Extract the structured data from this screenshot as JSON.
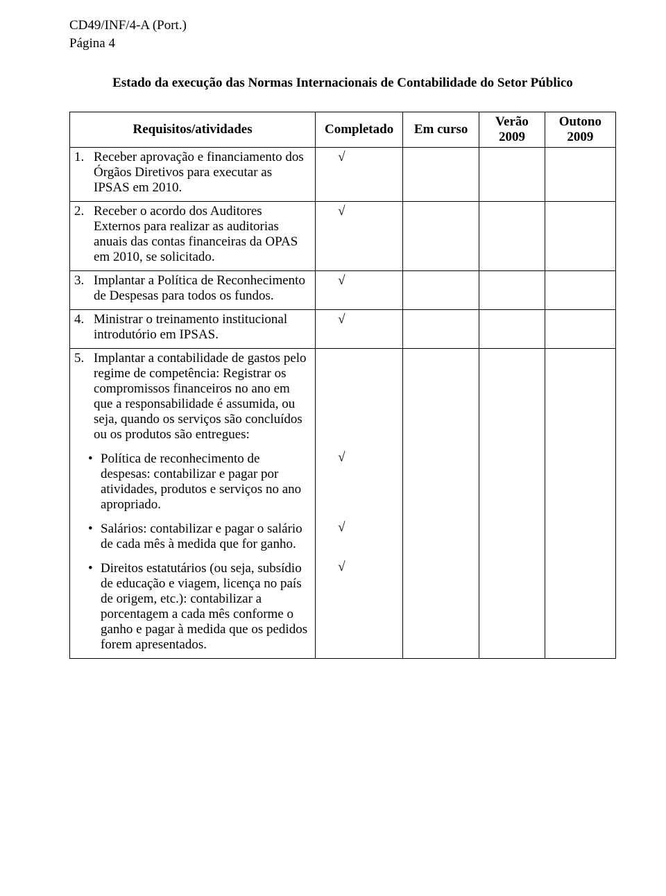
{
  "header": {
    "doc_ref": "CD49/INF/4-A  (Port.)",
    "page_label": "Página 4"
  },
  "title": "Estado da execução das Normas Internacionais de Contabilidade do Setor Público",
  "columns": {
    "req": "Requisitos/atividades",
    "completado": "Completado",
    "curso": "Em curso",
    "verao_line1": "Verão",
    "verao_line2": "2009",
    "outono_line1": "Outono",
    "outono_line2": "2009"
  },
  "check": "√",
  "rows": [
    {
      "num": "1.",
      "text": "Receber aprovação e financiamento dos Órgãos Diretivos para executar as IPSAS em 2010.",
      "marks": [
        "√",
        "",
        "",
        ""
      ]
    },
    {
      "num": "2.",
      "text": "Receber o acordo dos Auditores Externos para realizar as auditorias anuais das contas financeiras da OPAS em 2010, se solicitado.",
      "marks": [
        "√",
        "",
        "",
        ""
      ]
    },
    {
      "num": "3.",
      "text": "Implantar a Política de Reconhecimento de Despesas para todos os fundos.",
      "marks": [
        "√",
        "",
        "",
        ""
      ]
    },
    {
      "num": "4.",
      "text": "Ministrar o treinamento institucional introdutório em IPSAS.",
      "marks": [
        "√",
        "",
        "",
        ""
      ]
    },
    {
      "num": "5.",
      "text": "Implantar a contabilidade de gastos pelo regime de competência: Registrar os compromissos financeiros no ano em que a responsabilidade é assumida, ou seja, quando os serviços são concluídos ou os produtos são entregues:",
      "marks": [
        "",
        "",
        "",
        ""
      ],
      "bullets": [
        {
          "text": "Política de reconhecimento de despesas: contabilizar e pagar por atividades, produtos e serviços no ano apropriado.",
          "marks": [
            "√",
            "",
            "",
            ""
          ]
        },
        {
          "text": "Salários: contabilizar e pagar o salário de cada mês à medida que for ganho.",
          "marks": [
            "√",
            "",
            "",
            ""
          ]
        },
        {
          "text": "Direitos estatutários (ou seja, subsídio de educação e viagem, licença no país de origem, etc.): contabilizar a porcentagem a cada mês conforme o ganho e pagar à medida que os pedidos forem apresentados.",
          "marks": [
            "√",
            "",
            "",
            ""
          ]
        }
      ]
    }
  ]
}
